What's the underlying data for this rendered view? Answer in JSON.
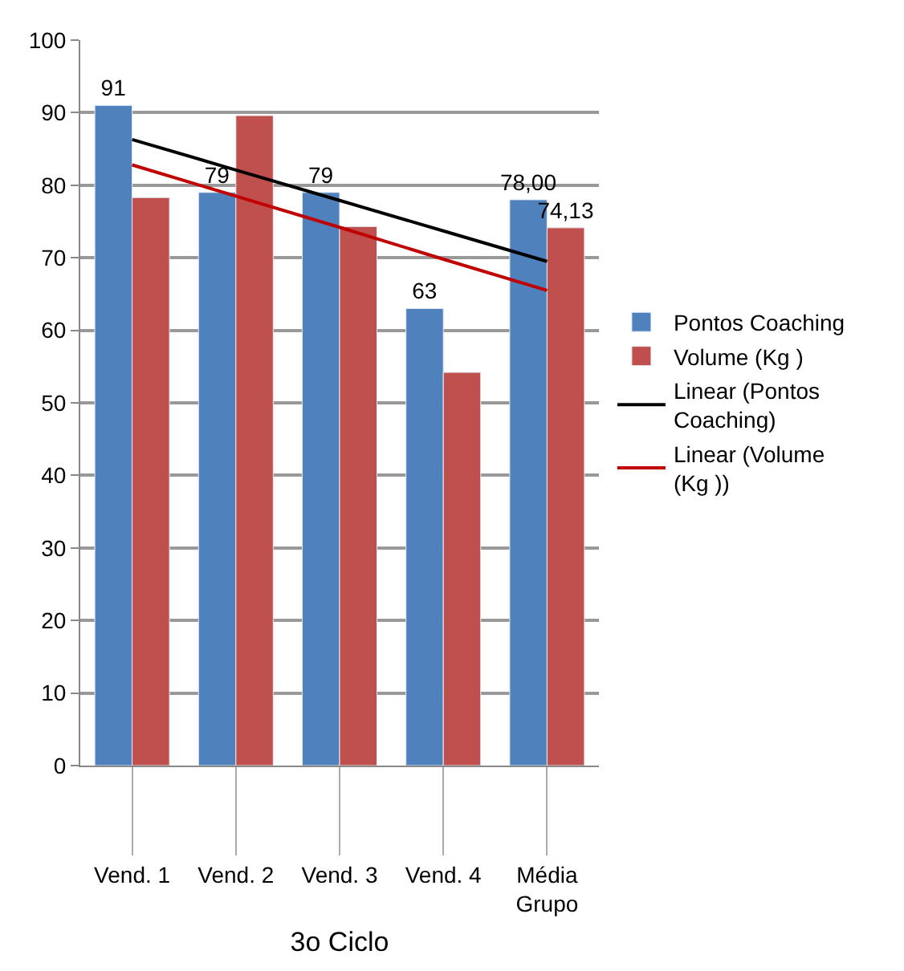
{
  "chart_data": {
    "type": "bar",
    "xlabel": "3o Ciclo",
    "categories": [
      "Vend. 1",
      "Vend. 2",
      "Vend. 3",
      "Vend. 4",
      "Média Grupo"
    ],
    "series": [
      {
        "name": "Pontos Coaching",
        "color": "#4f81bd",
        "values": [
          91,
          79,
          79,
          63,
          78
        ],
        "value_labels": [
          "91",
          "79",
          "79",
          "63",
          "78,00"
        ]
      },
      {
        "name": "Volume (Kg )",
        "color": "#c0504d",
        "values": [
          78.3,
          89.6,
          74.3,
          54.2,
          74.13
        ],
        "value_labels": [
          null,
          null,
          null,
          null,
          "74,13"
        ]
      },
      {
        "name": "Linear (Pontos Coaching)",
        "type": "line",
        "color": "#000000",
        "values": [
          86.3,
          82.1,
          77.9,
          73.7,
          69.5
        ]
      },
      {
        "name": "Linear (Volume (Kg ))",
        "type": "line",
        "color": "#c00000",
        "values": [
          82.8,
          78.5,
          74.2,
          69.8,
          65.5
        ]
      }
    ],
    "ylim": [
      0,
      100
    ],
    "yticks": [
      0,
      10,
      20,
      30,
      40,
      50,
      60,
      70,
      80,
      90,
      100
    ],
    "grid": "y",
    "legend": "right",
    "marker": "none",
    "line_style": "solid"
  }
}
